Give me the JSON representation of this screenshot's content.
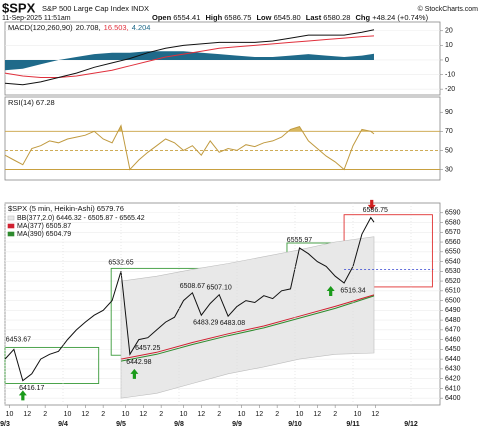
{
  "header": {
    "symbol": "$SPX",
    "name": "S&P 500 Large Cap Index INDX",
    "credit": "© StockCharts.com",
    "date": "11-Sep-2025 11:51am",
    "quote": [
      {
        "label": "Open",
        "value": "6554.41"
      },
      {
        "label": "High",
        "value": "6586.75"
      },
      {
        "label": "Low",
        "value": "6545.80"
      },
      {
        "label": "Last",
        "value": "6580.28"
      },
      {
        "label": "Chg",
        "value": "+48.24 (+0.74%)"
      }
    ]
  },
  "chart_data": [
    {
      "type": "line",
      "title": "MACD(120,260,90)",
      "legend": "inline",
      "x": [
        0,
        2,
        4,
        6,
        8,
        10,
        12,
        14,
        16,
        18,
        20,
        22,
        24,
        26,
        28,
        30,
        32,
        34,
        36,
        38,
        40,
        41.35
      ],
      "xlim": [
        0,
        48.75
      ],
      "ylim": [
        -24,
        26
      ],
      "yticks": [
        -20,
        -10,
        0,
        10,
        20
      ],
      "grid": true,
      "series": [
        {
          "name": "4.204",
          "type": "area",
          "color": "#1f6a8a",
          "values": [
            -7,
            -6,
            -3,
            0,
            2,
            4,
            5,
            5,
            6,
            6,
            6,
            5,
            4,
            3,
            2,
            2,
            3,
            4,
            3,
            2,
            3,
            4.204
          ]
        },
        {
          "name": "16.503,",
          "type": "line",
          "color": "#e0303c",
          "values": [
            -9,
            -11,
            -12,
            -12,
            -11,
            -9,
            -7,
            -4,
            -1,
            2,
            4,
            6,
            8,
            9,
            10,
            11,
            12,
            13,
            14,
            15,
            16,
            16.503
          ]
        },
        {
          "name": "20.708,",
          "type": "line",
          "color": "#111111",
          "values": [
            -16,
            -17,
            -15,
            -12,
            -9,
            -5,
            -2,
            1,
            5,
            8,
            10,
            11,
            12,
            12,
            12,
            13,
            15,
            17,
            17,
            17,
            19,
            20.708
          ]
        }
      ]
    },
    {
      "type": "line",
      "title": "RSI(14) 67.28",
      "x": [
        0,
        1,
        2,
        3,
        4,
        5,
        6,
        7,
        8,
        9,
        10,
        11,
        12,
        13,
        14,
        15,
        16,
        17,
        18,
        19,
        20,
        21,
        22,
        23,
        24,
        25,
        26,
        27,
        28,
        29,
        30,
        31,
        32,
        33,
        34,
        35,
        36,
        37,
        38,
        39,
        40,
        41,
        41.35
      ],
      "xlim": [
        0,
        48.75
      ],
      "ylim": [
        19,
        106
      ],
      "yticks": [
        30,
        50,
        70,
        90
      ],
      "levels": [
        {
          "value": 70
        },
        {
          "value": 50,
          "dashed": true
        },
        {
          "value": 30
        }
      ],
      "level_color": "#c8a040",
      "series": [
        {
          "type": "line",
          "color": "#c09a40",
          "fill": "#d8b860",
          "fill_outside": [
            30,
            70
          ],
          "values": [
            45,
            40,
            35,
            52,
            55,
            60,
            58,
            62,
            64,
            66,
            70,
            62,
            58,
            76,
            30,
            40,
            48,
            55,
            62,
            58,
            50,
            55,
            45,
            60,
            48,
            52,
            50,
            56,
            54,
            58,
            60,
            64,
            72,
            75,
            60,
            52,
            44,
            38,
            30,
            55,
            72,
            70,
            67.28
          ]
        }
      ]
    },
    {
      "type": "line",
      "title": "$SPX (5 min, Heikin-Ashi) 6579.76",
      "legend": "stacked",
      "x": [
        0,
        1,
        2,
        3,
        4,
        5,
        6,
        7,
        8,
        9,
        10,
        11,
        12,
        13,
        14,
        15,
        16,
        17,
        18,
        19,
        20,
        21,
        22,
        23,
        24,
        25,
        26,
        27,
        28,
        29,
        30,
        31,
        32,
        33,
        34,
        35,
        36,
        37,
        38,
        39,
        40,
        41,
        41.35
      ],
      "xlim": [
        0,
        48.75
      ],
      "ylim": [
        6393,
        6600
      ],
      "yticks": [
        6400,
        6410,
        6420,
        6430,
        6440,
        6450,
        6460,
        6470,
        6480,
        6490,
        6500,
        6510,
        6520,
        6530,
        6540,
        6550,
        6560,
        6570,
        6580,
        6590
      ],
      "grid": true,
      "xticks": [
        {
          "value": 0.5,
          "label": "10"
        },
        {
          "value": 2.5,
          "label": "12"
        },
        {
          "value": 4.5,
          "label": "2"
        },
        {
          "value": 7,
          "label": "10"
        },
        {
          "value": 9,
          "label": "12"
        },
        {
          "value": 11,
          "label": "2"
        },
        {
          "value": 13.5,
          "label": "10"
        },
        {
          "value": 15.5,
          "label": "12"
        },
        {
          "value": 17.5,
          "label": "2"
        },
        {
          "value": 20,
          "label": "10"
        },
        {
          "value": 22,
          "label": "12"
        },
        {
          "value": 24,
          "label": "2"
        },
        {
          "value": 26.5,
          "label": "10"
        },
        {
          "value": 28.5,
          "label": "12"
        },
        {
          "value": 30.5,
          "label": "2"
        },
        {
          "value": 33,
          "label": "10"
        },
        {
          "value": 35,
          "label": "12"
        },
        {
          "value": 37,
          "label": "2"
        },
        {
          "value": 39.5,
          "label": "10"
        },
        {
          "value": 41.5,
          "label": "12"
        }
      ],
      "x_date_ticks": [
        {
          "value": 0,
          "label": "9/3"
        },
        {
          "value": 6.5,
          "label": "9/4"
        },
        {
          "value": 13,
          "label": "9/5"
        },
        {
          "value": 19.5,
          "label": "9/8"
        },
        {
          "value": 26,
          "label": "9/9"
        },
        {
          "value": 32.5,
          "label": "9/10"
        },
        {
          "value": 39,
          "label": "9/11"
        },
        {
          "value": 45.5,
          "label": "9/12"
        }
      ],
      "series": [
        {
          "name": "BB(377,2.0) 6446.32 - 6505.87 - 6565.42",
          "type": "band",
          "color": "#bdbdbd",
          "fill": "#e8e8e8",
          "x": [
            13,
            17,
            21,
            25,
            29,
            33,
            37,
            41.35
          ],
          "values": [
            6520,
            6525,
            6532,
            6538,
            6545,
            6552,
            6560,
            6565.42
          ],
          "lower": [
            6400,
            6405,
            6415,
            6425,
            6432,
            6440,
            6445,
            6446.32
          ]
        },
        {
          "name": "MA(377) 6505.87",
          "type": "line",
          "color": "#d02030",
          "x": [
            13,
            17,
            21,
            25,
            29,
            33,
            37,
            41.35
          ],
          "values": [
            6440,
            6447,
            6457,
            6466,
            6474,
            6484,
            6494,
            6505.87
          ]
        },
        {
          "name": "MA(390) 6504.79",
          "type": "line",
          "color": "#2e8b2e",
          "x": [
            13,
            17,
            21,
            25,
            29,
            33,
            37,
            41.35
          ],
          "values": [
            6438,
            6445,
            6455,
            6464,
            6472,
            6482,
            6492,
            6504.79
          ]
        },
        {
          "type": "line",
          "color": "#111111",
          "values": [
            6440,
            6450,
            6418,
            6425,
            6440,
            6445,
            6448,
            6460,
            6470,
            6478,
            6485,
            6490,
            6500,
            6530,
            6445,
            6460,
            6462,
            6470,
            6478,
            6483,
            6500,
            6508,
            6485,
            6497,
            6506,
            6484,
            6494,
            6500,
            6498,
            6505,
            6502,
            6510,
            6512,
            6554,
            6548,
            6540,
            6535,
            6525,
            6518,
            6535,
            6568,
            6585,
            6580.28
          ]
        }
      ],
      "boxes": [
        {
          "x": [
            0,
            10.5
          ],
          "y": [
            6415,
            6452
          ],
          "color": "#3a9a3a"
        },
        {
          "x": [
            11.9,
            35.4
          ],
          "y": [
            6444,
            6533
          ],
          "color": "#3a9a3a"
        },
        {
          "x": [
            31.6,
            38.6
          ],
          "y": [
            6523,
            6559
          ],
          "color": "#3a9a3a"
        },
        {
          "x": [
            38,
            47.9
          ],
          "y": [
            6514,
            6588
          ],
          "color": "#e03030"
        }
      ],
      "hlines": [
        {
          "y": 6532,
          "x": [
            38,
            48
          ],
          "color": "#3040d0",
          "dashed": true
        }
      ],
      "arrows": [
        {
          "x": 2,
          "y": 6408,
          "direction": "up",
          "color": "#1a9a1a"
        },
        {
          "x": 14.5,
          "y": 6430,
          "direction": "up",
          "color": "#1a9a1a"
        },
        {
          "x": 36.5,
          "y": 6515,
          "direction": "up",
          "color": "#1a9a1a"
        },
        {
          "x": 41.1,
          "y": 6593,
          "direction": "down",
          "color": "#d02020"
        }
      ],
      "annotations": [
        {
          "text": "6453.67",
          "x": 1.5,
          "y": 6453.67,
          "position": "above"
        },
        {
          "text": "6416.17",
          "x": 3,
          "y": 6416.17,
          "position": "below"
        },
        {
          "text": "6532.65",
          "x": 13,
          "y": 6532.65,
          "position": "above"
        },
        {
          "text": "6442.98",
          "x": 15,
          "y": 6442.98,
          "position": "below"
        },
        {
          "text": "6457.25",
          "x": 16,
          "y": 6457.25,
          "position": "below"
        },
        {
          "text": "6508.67",
          "x": 21,
          "y": 6508.67,
          "position": "above"
        },
        {
          "text": "6483.29",
          "x": 22.5,
          "y": 6483.29,
          "position": "below"
        },
        {
          "text": "6507.10",
          "x": 24,
          "y": 6507.1,
          "position": "above"
        },
        {
          "text": "6483.08",
          "x": 25.5,
          "y": 6483.08,
          "position": "below"
        },
        {
          "text": "6555.97",
          "x": 33,
          "y": 6555.97,
          "position": "above"
        },
        {
          "text": "6516.34",
          "x": 39,
          "y": 6516.34,
          "position": "below"
        },
        {
          "text": "6586.75",
          "x": 41.5,
          "y": 6586.75,
          "position": "above"
        }
      ]
    }
  ]
}
